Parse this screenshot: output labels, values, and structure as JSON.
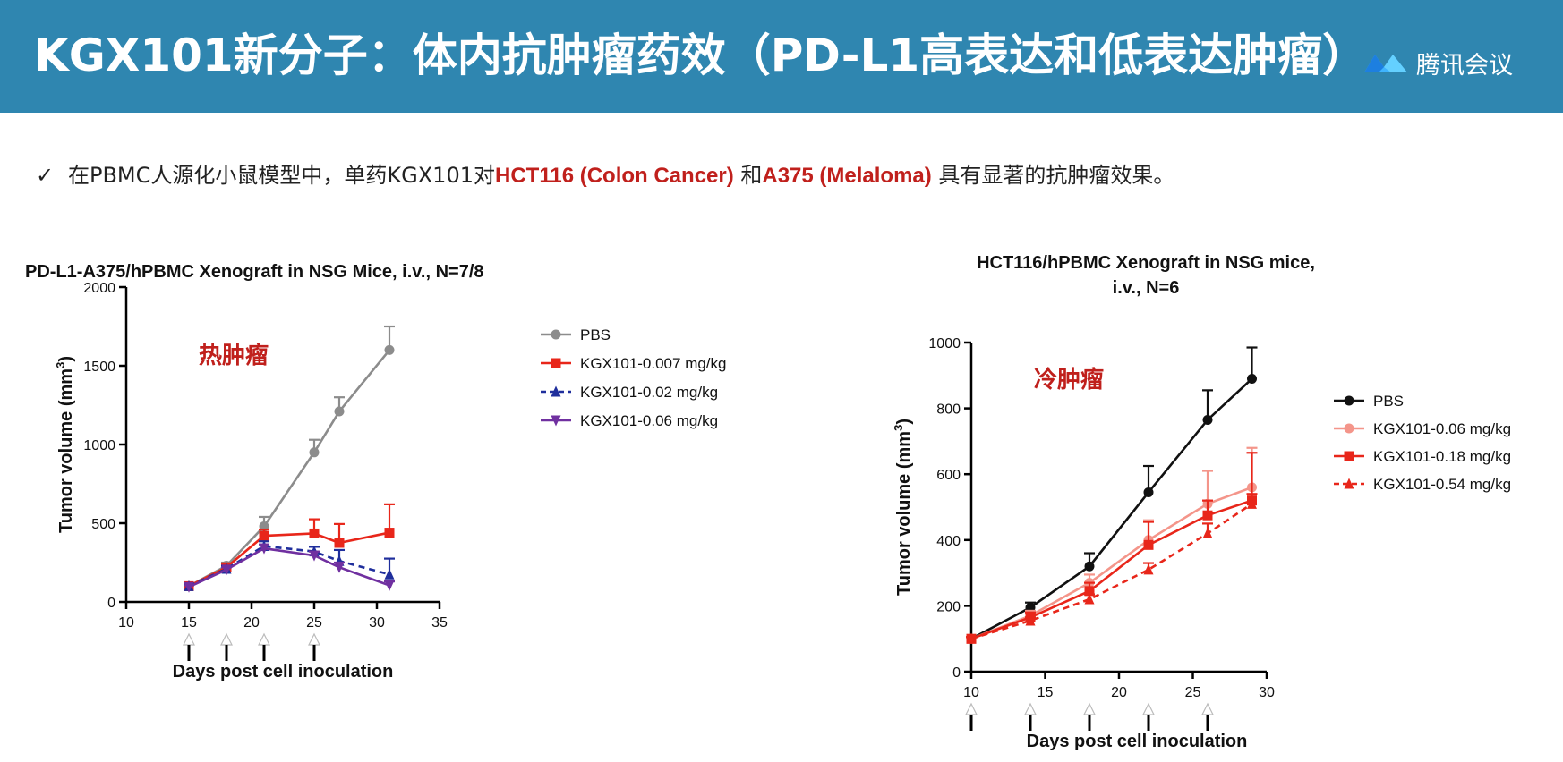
{
  "header": {
    "title": "KGX101新分子：体内抗肿瘤药效（PD-L1高表达和低表达肿瘤）",
    "app_label": "腾讯会议",
    "background": "#2f86b0"
  },
  "bullet": {
    "check": "✓",
    "text_1": "在PBMC人源化小鼠模型中，单药KGX101对",
    "hl_1": "HCT116 (Colon Cancer)",
    "text_2": " 和",
    "hl_2": "A375 (Melaloma)",
    "text_3": " 具有显著的抗肿瘤效果。",
    "highlight_color": "#c0201c"
  },
  "chart_data": [
    {
      "type": "line",
      "title": "PD-L1-A375/hPBMC Xenograft in NSG Mice, i.v., N=7/8",
      "annotation": "热肿瘤",
      "xlabel": "Days post cell inoculation",
      "ylabel": "Tumor volume (mm",
      "ylabel_sup": "3",
      "ylabel_end": ")",
      "xlim": [
        10,
        35
      ],
      "ylim": [
        0,
        2000
      ],
      "xticks": [
        10,
        15,
        20,
        25,
        30,
        35
      ],
      "yticks": [
        0,
        500,
        1000,
        1500,
        2000
      ],
      "dosing_days": [
        15,
        18,
        21,
        25
      ],
      "legend_position": "right",
      "series": [
        {
          "name": "PBS",
          "color": "#8c8c8c",
          "dash": false,
          "marker": "circle",
          "x": [
            15,
            18,
            21,
            25,
            27,
            31
          ],
          "y": [
            100,
            230,
            480,
            950,
            1210,
            1600
          ],
          "err": [
            10,
            20,
            60,
            80,
            90,
            150
          ]
        },
        {
          "name": "KGX101-0.007 mg/kg",
          "color": "#e8261a",
          "dash": false,
          "marker": "square",
          "x": [
            15,
            18,
            21,
            25,
            27,
            31
          ],
          "y": [
            100,
            220,
            420,
            435,
            375,
            440
          ],
          "err": [
            10,
            20,
            40,
            90,
            120,
            180
          ]
        },
        {
          "name": "KGX101-0.02 mg/kg",
          "color": "#1f2e9c",
          "dash": true,
          "marker": "triangle-up",
          "x": [
            15,
            18,
            21,
            25,
            27,
            31
          ],
          "y": [
            100,
            210,
            355,
            320,
            260,
            175
          ],
          "err": [
            10,
            20,
            30,
            30,
            70,
            100
          ]
        },
        {
          "name": "KGX101-0.06 mg/kg",
          "color": "#7030a0",
          "dash": false,
          "marker": "triangle-down",
          "x": [
            15,
            18,
            21,
            25,
            27,
            31
          ],
          "y": [
            95,
            205,
            340,
            295,
            220,
            105
          ],
          "err": [
            10,
            15,
            25,
            25,
            30,
            25
          ]
        }
      ]
    },
    {
      "type": "line",
      "title": "HCT116/hPBMC Xenograft in NSG mice,",
      "title_line2": "i.v., N=6",
      "annotation": "冷肿瘤",
      "xlabel": "Days post cell inoculation",
      "ylabel": "Tumor volume (mm",
      "ylabel_sup": "3",
      "ylabel_end": ")",
      "xlim": [
        10,
        30
      ],
      "ylim": [
        0,
        1000
      ],
      "xticks": [
        10,
        15,
        20,
        25,
        30
      ],
      "yticks": [
        0,
        200,
        400,
        600,
        800,
        1000
      ],
      "dosing_days": [
        10,
        14,
        18,
        22,
        26
      ],
      "legend_position": "right",
      "series": [
        {
          "name": "PBS",
          "color": "#111111",
          "dash": false,
          "marker": "circle",
          "x": [
            10,
            14,
            18,
            22,
            26,
            29
          ],
          "y": [
            100,
            195,
            320,
            545,
            765,
            890
          ],
          "err": [
            5,
            15,
            40,
            80,
            90,
            95
          ]
        },
        {
          "name": "KGX101-0.06 mg/kg",
          "color": "#f4958a",
          "dash": false,
          "marker": "circle",
          "x": [
            10,
            14,
            18,
            22,
            26,
            29
          ],
          "y": [
            100,
            170,
            270,
            400,
            510,
            560
          ],
          "err": [
            5,
            15,
            25,
            60,
            100,
            120
          ]
        },
        {
          "name": "KGX101-0.18 mg/kg",
          "color": "#e8261a",
          "dash": false,
          "marker": "square",
          "x": [
            10,
            14,
            18,
            22,
            26,
            29
          ],
          "y": [
            100,
            165,
            245,
            385,
            475,
            520
          ],
          "err": [
            5,
            15,
            25,
            70,
            45,
            145
          ]
        },
        {
          "name": "KGX101-0.54 mg/kg",
          "color": "#e8261a",
          "dash": true,
          "marker": "triangle-up",
          "x": [
            10,
            14,
            18,
            22,
            26,
            29
          ],
          "y": [
            100,
            155,
            220,
            310,
            420,
            510
          ],
          "err": [
            5,
            10,
            15,
            20,
            30,
            30
          ]
        }
      ]
    }
  ]
}
